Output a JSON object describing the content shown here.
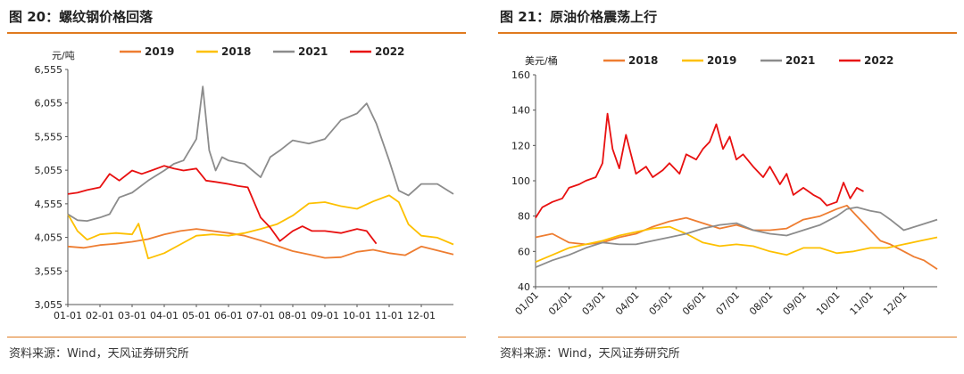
{
  "left": {
    "title": "图 20：螺纹钢价格回落",
    "source": "资料来源：Wind，天风证券研究所",
    "unit": "元/吨",
    "ytick_labels": [
      "3,055",
      "3,555",
      "4,055",
      "4,555",
      "5,055",
      "5,555",
      "6,055",
      "6,555"
    ],
    "xtick_labels": [
      "01-01",
      "02-01",
      "03-01",
      "04-01",
      "05-01",
      "06-01",
      "07-01",
      "08-01",
      "09-01",
      "10-01",
      "11-01",
      "12-01"
    ],
    "colors": {
      "2019": "#ee7d31",
      "2018": "#fdc000",
      "2021": "#8c8c8c",
      "2022": "#e81010"
    }
  },
  "right": {
    "title": "图 21：原油价格震荡上行",
    "source": "资料来源：Wind，天风证券研究所",
    "unit": "美元/桶",
    "ytick_labels": [
      "40",
      "60",
      "80",
      "100",
      "120",
      "140",
      "160"
    ],
    "xtick_labels": [
      "01/01",
      "02/01",
      "03/01",
      "04/01",
      "05/01",
      "06/01",
      "07/01",
      "08/01",
      "09/01",
      "10/01",
      "11/01",
      "12/01"
    ],
    "colors": {
      "2018": "#ee7d31",
      "2019": "#fdc000",
      "2021": "#8c8c8c",
      "2022": "#e81010"
    }
  },
  "chart_data": [
    {
      "type": "line",
      "title": "图 20：螺纹钢价格回落",
      "ylabel": "元/吨",
      "ylim": [
        3055,
        6555
      ],
      "x_unit": "month",
      "xlim": [
        1,
        13
      ],
      "legend": "top",
      "grid": false,
      "series": [
        {
          "name": "2019",
          "x": [
            1,
            1.5,
            2,
            2.5,
            3,
            3.5,
            4,
            4.5,
            5,
            5.5,
            6,
            6.5,
            7,
            7.5,
            8,
            8.5,
            9,
            9.5,
            10,
            10.5,
            11,
            11.5,
            12,
            12.5,
            13
          ],
          "values": [
            3920,
            3900,
            3940,
            3960,
            3990,
            4030,
            4100,
            4150,
            4180,
            4150,
            4120,
            4080,
            4010,
            3930,
            3850,
            3800,
            3750,
            3760,
            3840,
            3870,
            3820,
            3790,
            3920,
            3860,
            3800
          ]
        },
        {
          "name": "2018",
          "x": [
            1,
            1.3,
            1.6,
            2,
            2.5,
            3,
            3.2,
            3.5,
            4,
            4.5,
            5,
            5.5,
            6,
            6.5,
            7,
            7.5,
            8,
            8.5,
            9,
            9.5,
            10,
            10.5,
            11,
            11.3,
            11.6,
            12,
            12.5,
            13
          ],
          "values": [
            4400,
            4150,
            4020,
            4100,
            4120,
            4100,
            4260,
            3740,
            3820,
            3950,
            4080,
            4100,
            4080,
            4120,
            4180,
            4250,
            4380,
            4560,
            4580,
            4520,
            4480,
            4590,
            4680,
            4580,
            4250,
            4080,
            4050,
            3950
          ]
        },
        {
          "name": "2021",
          "x": [
            1,
            1.3,
            1.6,
            2,
            2.3,
            2.6,
            3,
            3.5,
            4,
            4.3,
            4.6,
            5,
            5.2,
            5.4,
            5.6,
            5.8,
            6,
            6.5,
            7,
            7.3,
            7.6,
            8,
            8.5,
            9,
            9.5,
            10,
            10.3,
            10.6,
            11,
            11.3,
            11.6,
            12,
            12.5,
            13
          ],
          "values": [
            4400,
            4310,
            4300,
            4350,
            4400,
            4650,
            4720,
            4900,
            5050,
            5150,
            5200,
            5520,
            6300,
            5350,
            5050,
            5250,
            5200,
            5150,
            4950,
            5250,
            5350,
            5500,
            5450,
            5520,
            5800,
            5900,
            6050,
            5750,
            5200,
            4750,
            4680,
            4850,
            4850,
            4700
          ]
        },
        {
          "name": "2022",
          "x": [
            1,
            1.3,
            1.6,
            2,
            2.3,
            2.6,
            3,
            3.3,
            3.6,
            4,
            4.3,
            4.6,
            5,
            5.3,
            5.6,
            6,
            6.3,
            6.6,
            7,
            7.3,
            7.6,
            8,
            8.3,
            8.6,
            9,
            9.5,
            10,
            10.3,
            10.6
          ],
          "values": [
            4700,
            4720,
            4760,
            4800,
            5000,
            4900,
            5050,
            5000,
            5050,
            5120,
            5080,
            5050,
            5080,
            4900,
            4880,
            4850,
            4820,
            4800,
            4350,
            4200,
            4000,
            4150,
            4220,
            4150,
            4150,
            4120,
            4180,
            4150,
            3960
          ]
        }
      ]
    },
    {
      "type": "line",
      "title": "图 21：原油价格震荡上行",
      "ylabel": "美元/桶",
      "ylim": [
        40,
        160
      ],
      "x_unit": "month",
      "xlim": [
        1,
        13
      ],
      "legend": "top",
      "grid": false,
      "series": [
        {
          "name": "2018",
          "x": [
            1,
            1.5,
            2,
            2.5,
            3,
            3.5,
            4,
            4.5,
            5,
            5.5,
            6,
            6.5,
            7,
            7.5,
            8,
            8.5,
            9,
            9.5,
            10,
            10.3,
            10.6,
            11,
            11.3,
            11.6,
            12,
            12.3,
            12.6,
            13
          ],
          "values": [
            68,
            70,
            65,
            64,
            65,
            68,
            70,
            74,
            77,
            79,
            76,
            73,
            75,
            72,
            72,
            73,
            78,
            80,
            84,
            86,
            80,
            72,
            66,
            64,
            60,
            57,
            55,
            50
          ]
        },
        {
          "name": "2019",
          "x": [
            1,
            1.5,
            2,
            2.5,
            3,
            3.5,
            4,
            4.5,
            5,
            5.5,
            6,
            6.5,
            7,
            7.5,
            8,
            8.5,
            9,
            9.5,
            10,
            10.5,
            11,
            11.5,
            12,
            12.5,
            13
          ],
          "values": [
            54,
            58,
            62,
            64,
            66,
            69,
            71,
            73,
            74,
            70,
            65,
            63,
            64,
            63,
            60,
            58,
            62,
            62,
            59,
            60,
            62,
            62,
            64,
            66,
            68
          ]
        },
        {
          "name": "2021",
          "x": [
            1,
            1.5,
            2,
            2.5,
            3,
            3.5,
            4,
            4.5,
            5,
            5.5,
            6,
            6.5,
            7,
            7.5,
            8,
            8.5,
            9,
            9.5,
            10,
            10.3,
            10.6,
            11,
            11.3,
            11.6,
            12,
            12.5,
            13
          ],
          "values": [
            51,
            55,
            58,
            62,
            65,
            64,
            64,
            66,
            68,
            70,
            73,
            75,
            76,
            72,
            70,
            69,
            72,
            75,
            80,
            84,
            85,
            83,
            82,
            78,
            72,
            75,
            78
          ]
        },
        {
          "name": "2022",
          "x": [
            1,
            1.2,
            1.5,
            1.8,
            2,
            2.3,
            2.5,
            2.8,
            3,
            3.15,
            3.3,
            3.5,
            3.7,
            3.85,
            4,
            4.3,
            4.5,
            4.8,
            5,
            5.3,
            5.5,
            5.8,
            6,
            6.2,
            6.4,
            6.6,
            6.8,
            7,
            7.2,
            7.5,
            7.8,
            8,
            8.3,
            8.5,
            8.7,
            9,
            9.3,
            9.5,
            9.7,
            10,
            10.2,
            10.4,
            10.6,
            10.8
          ],
          "values": [
            79,
            85,
            88,
            90,
            96,
            98,
            100,
            102,
            110,
            138,
            118,
            107,
            126,
            115,
            104,
            108,
            102,
            106,
            110,
            104,
            115,
            112,
            118,
            122,
            132,
            118,
            125,
            112,
            115,
            108,
            102,
            108,
            98,
            104,
            92,
            96,
            92,
            90,
            86,
            88,
            99,
            90,
            96,
            94
          ]
        }
      ]
    }
  ]
}
